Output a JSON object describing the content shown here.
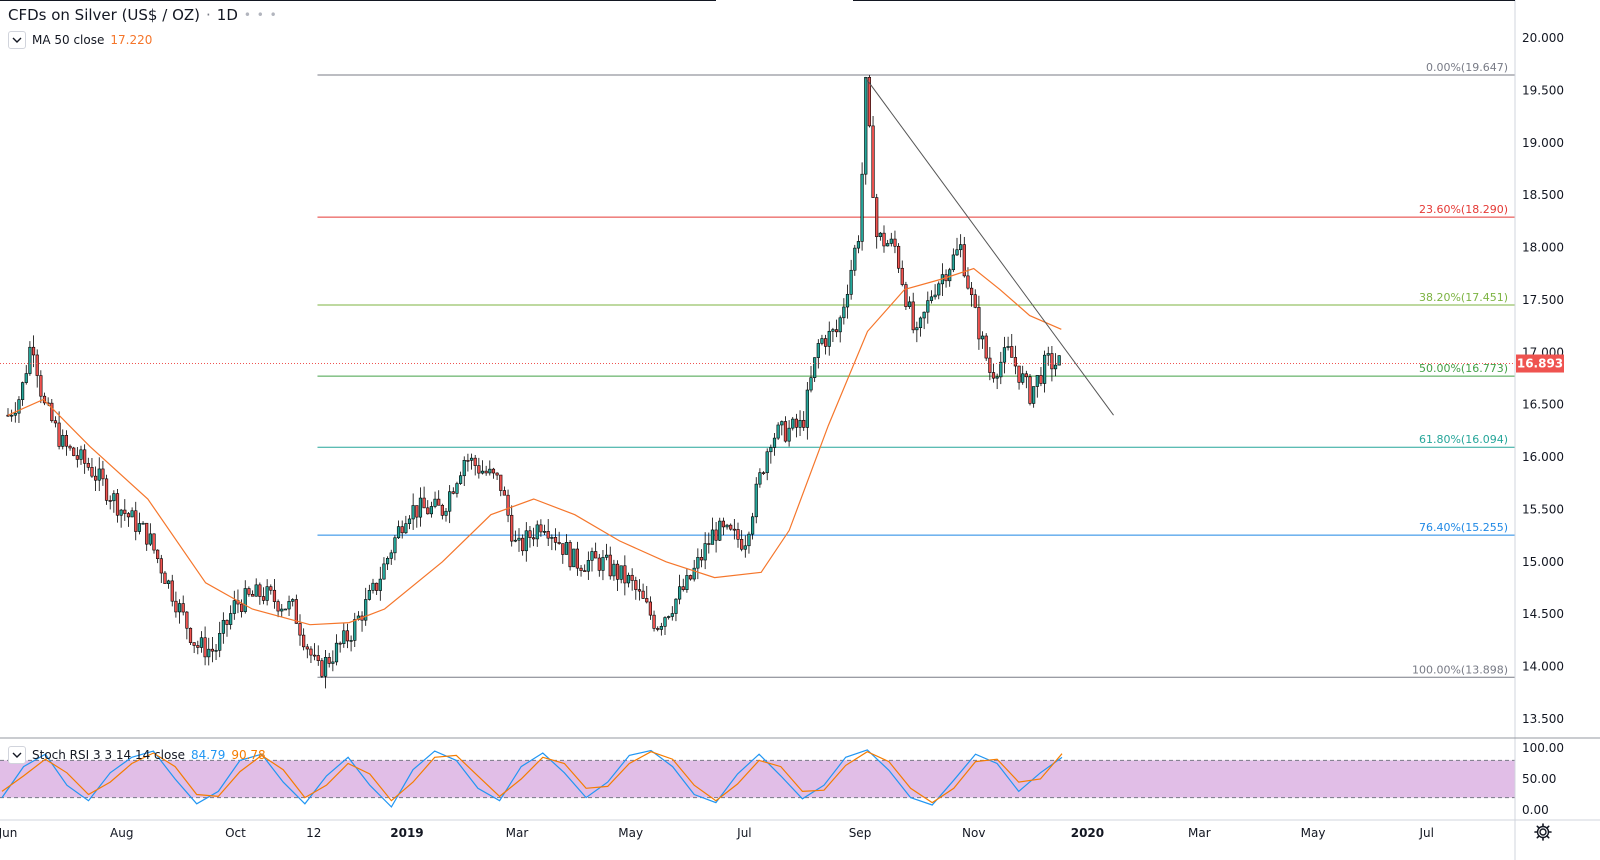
{
  "header": {
    "symbol": "CFDs on Silver (US$ / OZ)",
    "separator": "·",
    "interval": "1D",
    "more": "• • •"
  },
  "legend": {
    "ma_label": "MA 50 close",
    "ma_value": "17.220",
    "stoch_label": "Stoch RSI 3 3 14 14 close",
    "stoch_k": "84.79",
    "stoch_d": "90.78"
  },
  "colors": {
    "up": "#26a69a",
    "down": "#ef5350",
    "candle_border": "#000000",
    "ma": "#f5762b",
    "stoch_k": "#2196f3",
    "stoch_d": "#f57c00",
    "stoch_band": "#e1bee7",
    "price_tag": "#ef5350",
    "trendline": "#555555"
  },
  "chart_data": [
    {
      "type": "candlestick",
      "title": "CFDs on Silver (US$ / OZ) · 1D",
      "x_ticks": [
        "Jun",
        "Aug",
        "Oct",
        "12",
        "2019",
        "Mar",
        "May",
        "Jul",
        "Sep",
        "Nov",
        "2020",
        "Mar",
        "May",
        "Jul"
      ],
      "y_ticks": [
        "13.500",
        "14.000",
        "14.500",
        "15.000",
        "15.500",
        "16.000",
        "16.500",
        "17.000",
        "17.500",
        "18.000",
        "18.500",
        "19.000",
        "19.500",
        "20.000"
      ],
      "ylim": [
        13.5,
        20.0
      ],
      "last_price": "16.893",
      "close_path": [
        [
          "2018-06-01",
          16.4
        ],
        [
          "2018-06-08",
          16.6
        ],
        [
          "2018-06-14",
          17.15
        ],
        [
          "2018-06-20",
          16.5
        ],
        [
          "2018-07-01",
          16.1
        ],
        [
          "2018-07-15",
          15.9
        ],
        [
          "2018-08-01",
          15.5
        ],
        [
          "2018-08-15",
          15.25
        ],
        [
          "2018-09-01",
          14.55
        ],
        [
          "2018-09-10",
          14.2
        ],
        [
          "2018-09-20",
          14.15
        ],
        [
          "2018-10-01",
          14.6
        ],
        [
          "2018-10-15",
          14.7
        ],
        [
          "2018-11-01",
          14.55
        ],
        [
          "2018-11-14",
          13.95
        ],
        [
          "2018-12-01",
          14.3
        ],
        [
          "2018-12-15",
          14.75
        ],
        [
          "2019-01-01",
          15.5
        ],
        [
          "2019-01-20",
          15.5
        ],
        [
          "2019-02-01",
          16.0
        ],
        [
          "2019-02-20",
          15.75
        ],
        [
          "2019-03-01",
          15.1
        ],
        [
          "2019-03-15",
          15.4
        ],
        [
          "2019-04-01",
          15.0
        ],
        [
          "2019-04-15",
          15.0
        ],
        [
          "2019-05-01",
          14.8
        ],
        [
          "2019-05-15",
          14.4
        ],
        [
          "2019-06-01",
          14.8
        ],
        [
          "2019-06-15",
          15.3
        ],
        [
          "2019-07-01",
          15.2
        ],
        [
          "2019-07-15",
          16.2
        ],
        [
          "2019-08-01",
          16.3
        ],
        [
          "2019-08-10",
          17.1
        ],
        [
          "2019-08-20",
          17.2
        ],
        [
          "2019-09-01",
          18.2
        ],
        [
          "2019-09-04",
          19.55
        ],
        [
          "2019-09-10",
          18.1
        ],
        [
          "2019-09-20",
          18.0
        ],
        [
          "2019-10-01",
          17.1
        ],
        [
          "2019-10-10",
          17.6
        ],
        [
          "2019-10-25",
          18.0
        ],
        [
          "2019-11-01",
          17.4
        ],
        [
          "2019-11-10",
          16.8
        ],
        [
          "2019-11-20",
          17.0
        ],
        [
          "2019-12-01",
          16.6
        ],
        [
          "2019-12-10",
          16.9
        ],
        [
          "2019-12-18",
          16.89
        ]
      ],
      "ma50_path": [
        [
          "2018-06-01",
          16.4
        ],
        [
          "2018-06-20",
          16.55
        ],
        [
          "2018-07-15",
          16.1
        ],
        [
          "2018-08-15",
          15.6
        ],
        [
          "2018-09-15",
          14.8
        ],
        [
          "2018-10-10",
          14.55
        ],
        [
          "2018-11-10",
          14.4
        ],
        [
          "2018-12-01",
          14.42
        ],
        [
          "2018-12-20",
          14.55
        ],
        [
          "2019-01-20",
          15.0
        ],
        [
          "2019-02-15",
          15.45
        ],
        [
          "2019-03-10",
          15.6
        ],
        [
          "2019-04-01",
          15.45
        ],
        [
          "2019-04-25",
          15.2
        ],
        [
          "2019-05-20",
          15.0
        ],
        [
          "2019-06-15",
          14.85
        ],
        [
          "2019-07-10",
          14.9
        ],
        [
          "2019-07-25",
          15.3
        ],
        [
          "2019-08-15",
          16.3
        ],
        [
          "2019-09-05",
          17.2
        ],
        [
          "2019-09-25",
          17.6
        ],
        [
          "2019-10-15",
          17.7
        ],
        [
          "2019-11-01",
          17.8
        ],
        [
          "2019-11-15",
          17.6
        ],
        [
          "2019-12-01",
          17.35
        ],
        [
          "2019-12-18",
          17.22
        ]
      ],
      "fibonacci": [
        {
          "label": "0.00%(19.647)",
          "price": 19.647,
          "color": "#787b86"
        },
        {
          "label": "23.60%(18.290)",
          "price": 18.29,
          "color": "#e53935"
        },
        {
          "label": "38.20%(17.451)",
          "price": 17.451,
          "color": "#7cb342"
        },
        {
          "label": "50.00%(16.773)",
          "price": 16.773,
          "color": "#43a047"
        },
        {
          "label": "61.80%(16.094)",
          "price": 16.094,
          "color": "#26a69a"
        },
        {
          "label": "76.40%(15.255)",
          "price": 15.255,
          "color": "#1e88e5"
        },
        {
          "label": "100.00%(13.898)",
          "price": 13.898,
          "color": "#787b86"
        }
      ],
      "fib_start_date": "2018-11-14",
      "trendline": [
        [
          "2019-09-04",
          19.62
        ],
        [
          "2020-01-15",
          16.4
        ]
      ]
    },
    {
      "type": "line",
      "title": "Stoch RSI 3 3 14 14 close",
      "ylim": [
        0,
        100
      ],
      "y_ticks": [
        "0.00",
        "50.00",
        "100.00"
      ],
      "band": [
        20,
        80
      ],
      "series": [
        {
          "name": "K",
          "values": [
            20,
            70,
            90,
            40,
            15,
            60,
            85,
            95,
            50,
            10,
            30,
            80,
            90,
            45,
            10,
            55,
            85,
            40,
            5,
            65,
            95,
            80,
            35,
            15,
            70,
            92,
            60,
            20,
            45,
            88,
            96,
            70,
            25,
            12,
            58,
            90,
            55,
            18,
            40,
            85,
            97,
            64,
            20,
            8,
            48,
            90,
            75,
            30,
            60,
            84.79
          ]
        },
        {
          "name": "D",
          "values": [
            30,
            55,
            82,
            60,
            25,
            45,
            75,
            92,
            70,
            25,
            22,
            62,
            88,
            65,
            20,
            40,
            75,
            58,
            15,
            45,
            85,
            88,
            55,
            22,
            50,
            85,
            75,
            35,
            38,
            75,
            94,
            82,
            40,
            15,
            42,
            80,
            70,
            30,
            32,
            72,
            94,
            78,
            35,
            12,
            35,
            78,
            82,
            45,
            50,
            90.78
          ]
        }
      ]
    }
  ]
}
